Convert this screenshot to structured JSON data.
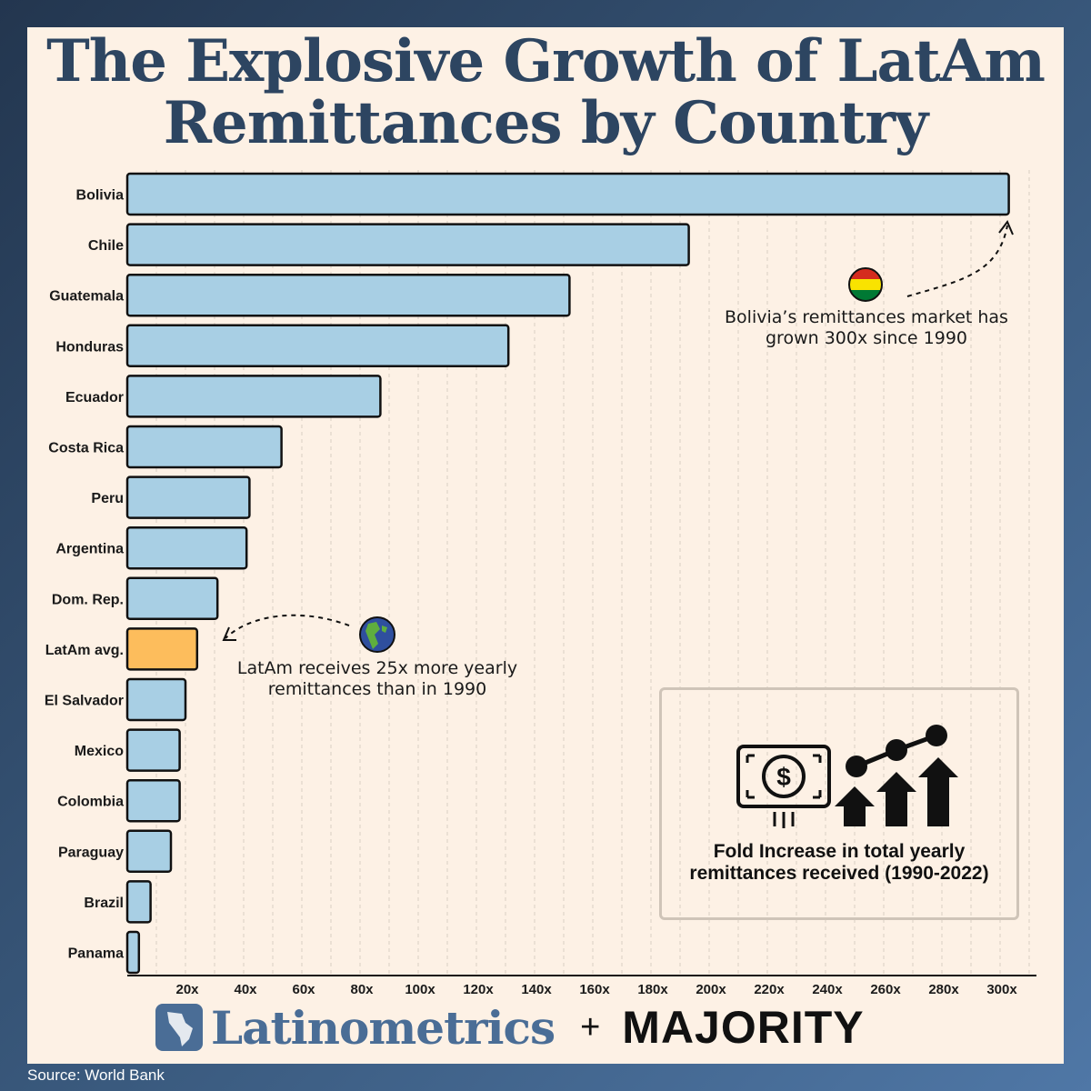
{
  "title": {
    "line1": "The Explosive Growth of LatAm",
    "line2": "Remittances by Country"
  },
  "chart_data": {
    "type": "bar",
    "orientation": "horizontal",
    "title": "The Explosive Growth of LatAm Remittances by Country",
    "categories": [
      "Bolivia",
      "Chile",
      "Guatemala",
      "Honduras",
      "Ecuador",
      "Costa Rica",
      "Peru",
      "Argentina",
      "Dom. Rep.",
      "LatAm avg.",
      "El Salvador",
      "Mexico",
      "Colombia",
      "Paraguay",
      "Brazil",
      "Panama"
    ],
    "values": [
      303,
      193,
      152,
      131,
      87,
      53,
      42,
      41,
      31,
      24,
      20,
      18,
      18,
      15,
      8,
      4
    ],
    "highlight": "LatAm avg.",
    "xlim": [
      0,
      310
    ],
    "xticks": [
      20,
      40,
      60,
      80,
      100,
      120,
      140,
      160,
      180,
      200,
      220,
      240,
      260,
      280,
      300
    ],
    "tick_suffix": "x",
    "grid": "vertical dashed",
    "xlabel": "",
    "ylabel": "",
    "colors": {
      "bar": "#a8cfe4",
      "highlight": "#fdbd5c",
      "outline": "#111111",
      "grid": "#d9cfc4"
    }
  },
  "annotations": {
    "bolivia": {
      "line1": "Bolivia’s remittances market has",
      "line2": "grown 300x since 1990",
      "icon": "bolivia-flag-icon"
    },
    "latam": {
      "line1": "LatAm receives 25x more yearly",
      "line2": "remittances than in 1990",
      "icon": "globe-icon"
    }
  },
  "legend": {
    "line1": "Fold Increase in total yearly",
    "line2": "remittances received (1990-2022)",
    "icon": "money-growth-icon"
  },
  "footer": {
    "brand1": "Latinometrics",
    "plus": "+",
    "brand2": "MAJORITY",
    "source": "Source: World Bank"
  },
  "colors": {
    "title": "#2d4561",
    "background": "#fdf1e5",
    "brand1": "#4a6d96"
  }
}
